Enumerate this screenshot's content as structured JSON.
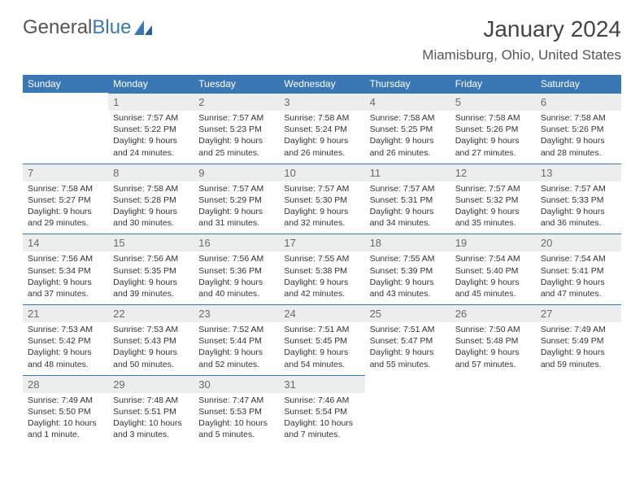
{
  "brand": {
    "part1": "General",
    "part2": "Blue"
  },
  "title": "January 2024",
  "location": "Miamisburg, Ohio, United States",
  "dayHeaders": [
    "Sunday",
    "Monday",
    "Tuesday",
    "Wednesday",
    "Thursday",
    "Friday",
    "Saturday"
  ],
  "colors": {
    "header_bg": "#3a78b5",
    "header_text": "#ffffff",
    "daynum_bg": "#eceded",
    "rule": "#3a78b5",
    "body_bg": "#ffffff"
  },
  "fonts": {
    "title_size": 28,
    "location_size": 17,
    "header_size": 12,
    "body_size": 10.5
  },
  "layout": {
    "cols": 7,
    "rows": 5,
    "first_weekday_index": 1
  },
  "days": [
    {
      "n": "1",
      "sr": "7:57 AM",
      "ss": "5:22 PM",
      "dl": "9 hours and 24 minutes."
    },
    {
      "n": "2",
      "sr": "7:57 AM",
      "ss": "5:23 PM",
      "dl": "9 hours and 25 minutes."
    },
    {
      "n": "3",
      "sr": "7:58 AM",
      "ss": "5:24 PM",
      "dl": "9 hours and 26 minutes."
    },
    {
      "n": "4",
      "sr": "7:58 AM",
      "ss": "5:25 PM",
      "dl": "9 hours and 26 minutes."
    },
    {
      "n": "5",
      "sr": "7:58 AM",
      "ss": "5:26 PM",
      "dl": "9 hours and 27 minutes."
    },
    {
      "n": "6",
      "sr": "7:58 AM",
      "ss": "5:26 PM",
      "dl": "9 hours and 28 minutes."
    },
    {
      "n": "7",
      "sr": "7:58 AM",
      "ss": "5:27 PM",
      "dl": "9 hours and 29 minutes."
    },
    {
      "n": "8",
      "sr": "7:58 AM",
      "ss": "5:28 PM",
      "dl": "9 hours and 30 minutes."
    },
    {
      "n": "9",
      "sr": "7:57 AM",
      "ss": "5:29 PM",
      "dl": "9 hours and 31 minutes."
    },
    {
      "n": "10",
      "sr": "7:57 AM",
      "ss": "5:30 PM",
      "dl": "9 hours and 32 minutes."
    },
    {
      "n": "11",
      "sr": "7:57 AM",
      "ss": "5:31 PM",
      "dl": "9 hours and 34 minutes."
    },
    {
      "n": "12",
      "sr": "7:57 AM",
      "ss": "5:32 PM",
      "dl": "9 hours and 35 minutes."
    },
    {
      "n": "13",
      "sr": "7:57 AM",
      "ss": "5:33 PM",
      "dl": "9 hours and 36 minutes."
    },
    {
      "n": "14",
      "sr": "7:56 AM",
      "ss": "5:34 PM",
      "dl": "9 hours and 37 minutes."
    },
    {
      "n": "15",
      "sr": "7:56 AM",
      "ss": "5:35 PM",
      "dl": "9 hours and 39 minutes."
    },
    {
      "n": "16",
      "sr": "7:56 AM",
      "ss": "5:36 PM",
      "dl": "9 hours and 40 minutes."
    },
    {
      "n": "17",
      "sr": "7:55 AM",
      "ss": "5:38 PM",
      "dl": "9 hours and 42 minutes."
    },
    {
      "n": "18",
      "sr": "7:55 AM",
      "ss": "5:39 PM",
      "dl": "9 hours and 43 minutes."
    },
    {
      "n": "19",
      "sr": "7:54 AM",
      "ss": "5:40 PM",
      "dl": "9 hours and 45 minutes."
    },
    {
      "n": "20",
      "sr": "7:54 AM",
      "ss": "5:41 PM",
      "dl": "9 hours and 47 minutes."
    },
    {
      "n": "21",
      "sr": "7:53 AM",
      "ss": "5:42 PM",
      "dl": "9 hours and 48 minutes."
    },
    {
      "n": "22",
      "sr": "7:53 AM",
      "ss": "5:43 PM",
      "dl": "9 hours and 50 minutes."
    },
    {
      "n": "23",
      "sr": "7:52 AM",
      "ss": "5:44 PM",
      "dl": "9 hours and 52 minutes."
    },
    {
      "n": "24",
      "sr": "7:51 AM",
      "ss": "5:45 PM",
      "dl": "9 hours and 54 minutes."
    },
    {
      "n": "25",
      "sr": "7:51 AM",
      "ss": "5:47 PM",
      "dl": "9 hours and 55 minutes."
    },
    {
      "n": "26",
      "sr": "7:50 AM",
      "ss": "5:48 PM",
      "dl": "9 hours and 57 minutes."
    },
    {
      "n": "27",
      "sr": "7:49 AM",
      "ss": "5:49 PM",
      "dl": "9 hours and 59 minutes."
    },
    {
      "n": "28",
      "sr": "7:49 AM",
      "ss": "5:50 PM",
      "dl": "10 hours and 1 minute."
    },
    {
      "n": "29",
      "sr": "7:48 AM",
      "ss": "5:51 PM",
      "dl": "10 hours and 3 minutes."
    },
    {
      "n": "30",
      "sr": "7:47 AM",
      "ss": "5:53 PM",
      "dl": "10 hours and 5 minutes."
    },
    {
      "n": "31",
      "sr": "7:46 AM",
      "ss": "5:54 PM",
      "dl": "10 hours and 7 minutes."
    }
  ],
  "labels": {
    "sunrise": "Sunrise:",
    "sunset": "Sunset:",
    "daylight": "Daylight:"
  }
}
